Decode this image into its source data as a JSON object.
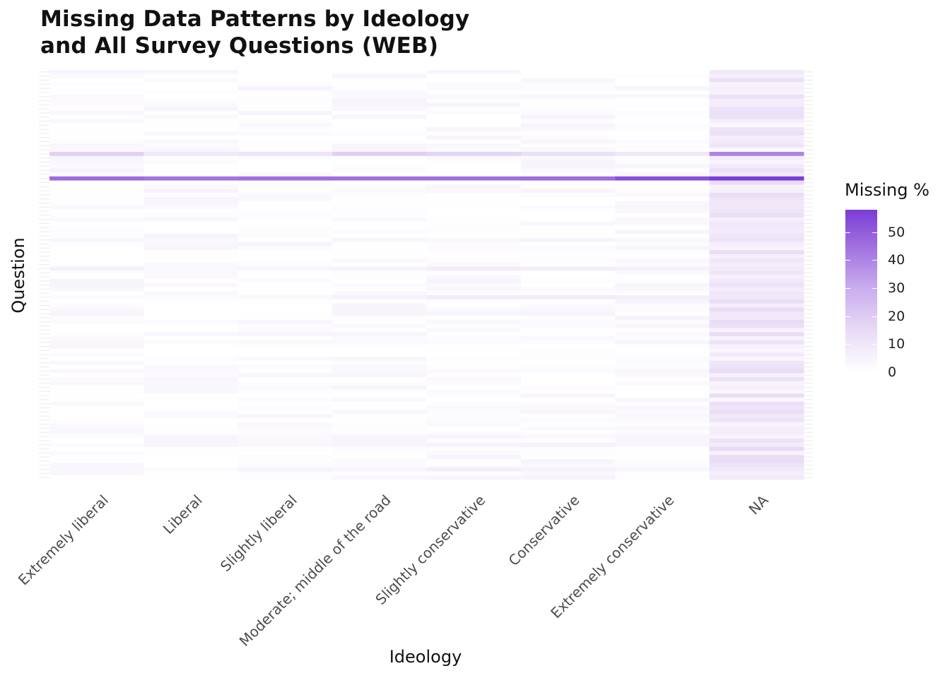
{
  "title_lines": [
    "Missing Data Patterns by Ideology",
    "and All Survey Questions (WEB)"
  ],
  "colors": {
    "low": "#ffffff",
    "high": "#7a3dd6",
    "grid": "#ebebeb"
  },
  "chart_data": {
    "type": "heatmap",
    "title": "Missing Data Patterns by Ideology and All Survey Questions (WEB)",
    "xlabel": "Ideology",
    "ylabel": "Question",
    "x": [
      "Extremely liberal",
      "Liberal",
      "Slightly liberal",
      "Moderate; middle of the road",
      "Slightly conservative",
      "Conservative",
      "Extremely conservative",
      "NA"
    ],
    "y_tick_labels_shown": false,
    "question_count": 100,
    "legend": {
      "title": "Missing %",
      "position": "right",
      "breaks": [
        0,
        10,
        20,
        30,
        40,
        50
      ],
      "range": [
        0,
        58
      ]
    },
    "highlighted_rows": [
      {
        "row": 20,
        "values": [
          18,
          9,
          11,
          19,
          17,
          13,
          10,
          40
        ]
      },
      {
        "row": 26,
        "values": [
          46,
          44,
          45,
          45,
          45,
          46,
          53,
          58
        ]
      },
      {
        "row": 48,
        "values": [
          6,
          3,
          4,
          5,
          8,
          7,
          6,
          9
        ]
      },
      {
        "row": 55,
        "values": [
          2,
          2,
          3,
          6,
          8,
          8,
          7,
          9
        ]
      },
      {
        "row": 91,
        "values": [
          2,
          4,
          3,
          4,
          5,
          6,
          4,
          8
        ]
      },
      {
        "row": 97,
        "values": [
          3,
          2,
          5,
          4,
          7,
          5,
          4,
          9
        ]
      }
    ],
    "typical_missing_range": [
      0,
      5
    ],
    "na_column_typical_range": [
      3,
      15
    ]
  }
}
